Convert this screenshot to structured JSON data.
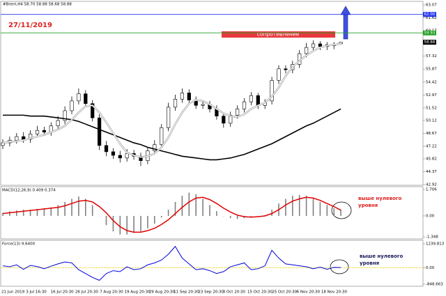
{
  "chart_data": [
    {
      "type": "candlestick",
      "title": "#Brent,H4 58.70 58.88 58.68 58.88",
      "annotation": "27/11/2019",
      "zone_label": "сопротивление",
      "open": [
        47.3,
        47.6,
        47.9,
        48.3,
        48.0,
        48.6,
        49.0,
        48.8,
        49.5,
        50.1,
        51.2,
        52.3,
        53.1,
        52.0,
        50.4,
        47.3,
        46.6,
        46.2,
        45.9,
        46.4,
        46.1,
        45.6,
        46.7,
        47.4,
        49.3,
        51.6,
        52.5,
        53.2,
        52.4,
        51.8,
        51.9,
        51.4,
        50.6,
        49.8,
        50.7,
        51.4,
        52.2,
        52.9,
        51.8,
        52.3,
        54.6,
        55.9,
        55.8,
        56.4,
        57.6,
        58.3,
        58.7,
        58.4,
        58.6,
        58.7
      ],
      "high": [
        48.0,
        48.3,
        48.7,
        48.8,
        49.0,
        49.5,
        49.4,
        49.9,
        50.6,
        51.7,
        52.8,
        53.7,
        53.5,
        52.4,
        50.8,
        47.8,
        47.0,
        46.7,
        46.9,
        46.8,
        46.5,
        47.1,
        47.9,
        49.7,
        52.1,
        53.0,
        53.7,
        53.6,
        52.8,
        52.3,
        52.3,
        51.8,
        51.0,
        51.1,
        51.8,
        52.6,
        53.3,
        53.2,
        52.5,
        55.0,
        56.3,
        56.3,
        56.8,
        58.0,
        58.8,
        59.1,
        59.0,
        58.9,
        58.9,
        58.88
      ],
      "low": [
        46.9,
        47.2,
        47.5,
        47.6,
        47.6,
        48.2,
        48.4,
        48.4,
        49.1,
        49.7,
        50.8,
        51.9,
        51.6,
        50.0,
        46.8,
        46.1,
        45.8,
        45.4,
        45.5,
        45.7,
        45.0,
        45.2,
        46.3,
        47.0,
        48.9,
        51.2,
        52.1,
        52.0,
        51.4,
        51.4,
        51.0,
        50.2,
        49.3,
        49.4,
        50.3,
        51.0,
        51.8,
        51.4,
        51.4,
        51.9,
        54.2,
        55.4,
        55.4,
        56.0,
        57.2,
        57.9,
        58.0,
        58.0,
        58.1,
        58.68
      ],
      "close": [
        47.6,
        47.9,
        48.3,
        48.0,
        48.6,
        49.0,
        48.8,
        49.5,
        50.1,
        51.2,
        52.3,
        53.1,
        52.0,
        50.4,
        47.3,
        46.6,
        46.2,
        45.9,
        46.4,
        46.1,
        45.6,
        46.7,
        47.4,
        49.3,
        51.6,
        52.5,
        53.2,
        52.4,
        51.8,
        51.9,
        51.4,
        50.6,
        49.8,
        50.7,
        51.4,
        52.2,
        52.9,
        51.8,
        52.1,
        54.6,
        55.9,
        55.8,
        56.4,
        57.6,
        58.3,
        58.7,
        58.4,
        58.6,
        58.5,
        58.88
      ],
      "lines": [
        {
          "color": "#000000",
          "values": [
            50.7,
            50.7,
            50.7,
            50.7,
            50.6,
            50.6,
            50.6,
            50.5,
            50.4,
            50.3,
            50.2,
            50.0,
            49.7,
            49.4,
            49.1,
            48.8,
            48.5,
            48.2,
            47.9,
            47.6,
            47.4,
            47.1,
            46.9,
            46.7,
            46.5,
            46.3,
            46.1,
            46.0,
            45.9,
            45.8,
            45.7,
            45.7,
            45.8,
            45.9,
            46.1,
            46.3,
            46.6,
            46.9,
            47.2,
            47.5,
            47.9,
            48.3,
            48.7,
            49.1,
            49.5,
            49.8,
            50.2,
            50.6,
            51.0,
            51.4
          ]
        },
        {
          "color": "#ffffff",
          "values": [
            47.6,
            47.7,
            47.8,
            47.9,
            48.1,
            48.3,
            48.5,
            48.8,
            49.1,
            49.5,
            50.2,
            51.0,
            51.7,
            51.8,
            51.0,
            49.9,
            48.7,
            47.5,
            46.5,
            46.2,
            46.0,
            46.1,
            46.4,
            47.1,
            48.2,
            49.7,
            51.0,
            52.0,
            52.4,
            52.3,
            51.9,
            51.4,
            50.9,
            50.6,
            50.5,
            50.8,
            51.4,
            51.8,
            52.1,
            52.8,
            53.8,
            55.1,
            56.1,
            56.8,
            57.4,
            57.9,
            58.3,
            58.5,
            58.6,
            58.7
          ]
        }
      ],
      "levels": [
        {
          "value": 62,
          "label": "62.00",
          "color": "#2233ee",
          "line": true
        },
        {
          "value": 59.93,
          "label": "59.93",
          "color": "#22a022",
          "line": true
        },
        {
          "value": 58.88,
          "label": "58.88",
          "color": "#000000",
          "line": false
        }
      ],
      "ylim": [
        42.92,
        63.07
      ],
      "yticks": [
        63.07,
        61.62,
        60.17,
        57.32,
        55.87,
        54.42,
        52.97,
        51.52,
        50.12,
        48.67,
        47.22,
        45.82,
        44.37,
        42.92
      ]
    },
    {
      "type": "macd",
      "title": "MACD(12,26,9) 0.409 0.374",
      "values": [
        0.2,
        0.3,
        0.35,
        0.4,
        0.4,
        0.45,
        0.5,
        0.55,
        0.7,
        0.9,
        1.1,
        1.25,
        1.1,
        0.7,
        0.0,
        -0.6,
        -1.0,
        -1.2,
        -1.2,
        -1.1,
        -1.0,
        -0.8,
        -0.5,
        -0.1,
        0.4,
        0.9,
        1.3,
        1.5,
        1.4,
        1.1,
        0.7,
        0.3,
        0.0,
        -0.15,
        -0.2,
        -0.15,
        -0.05,
        0.0,
        0.05,
        0.4,
        0.8,
        1.1,
        1.3,
        1.35,
        1.3,
        1.1,
        0.9,
        0.7,
        0.5,
        0.409
      ],
      "color": "#808080",
      "signal": {
        "color": "#e00000",
        "values": [
          0.15,
          0.2,
          0.25,
          0.3,
          0.35,
          0.4,
          0.45,
          0.5,
          0.55,
          0.65,
          0.8,
          0.95,
          1.0,
          0.9,
          0.6,
          0.2,
          -0.3,
          -0.7,
          -0.95,
          -1.05,
          -1.05,
          -0.95,
          -0.8,
          -0.55,
          -0.25,
          0.15,
          0.55,
          0.9,
          1.15,
          1.2,
          1.05,
          0.8,
          0.5,
          0.25,
          0.05,
          -0.05,
          -0.08,
          -0.05,
          0.0,
          0.15,
          0.4,
          0.7,
          0.95,
          1.1,
          1.2,
          1.15,
          1.0,
          0.8,
          0.6,
          0.374
        ]
      },
      "annotation": [
        "выше нулевого",
        "уровня"
      ],
      "ylim": [
        -1.348,
        1.706
      ],
      "yticks": [
        1.706,
        {
          "value": 0,
          "label": "0.00"
        },
        -1.348
      ]
    },
    {
      "type": "line",
      "title": "Force(13) 9.6400",
      "series": [
        {
          "color": "#0000dd",
          "values": [
            100,
            50,
            150,
            -80,
            120,
            60,
            -50,
            80,
            200,
            300,
            250,
            -100,
            -300,
            -500,
            -650,
            -300,
            -150,
            -200,
            50,
            -100,
            -50,
            150,
            250,
            400,
            700,
            1100,
            500,
            200,
            -100,
            -50,
            -150,
            -300,
            -200,
            50,
            150,
            250,
            -100,
            -50,
            100,
            900,
            500,
            200,
            150,
            100,
            50,
            -50,
            30,
            -80,
            20,
            9.64
          ]
        }
      ],
      "zero_line_color": "#f0e060",
      "annotation": [
        "выше нулевого",
        "уровня"
      ],
      "ylim": [
        -848.663,
        1239.813
      ],
      "yticks": [
        1239.813,
        {
          "value": 0,
          "label": "0.00"
        },
        -848.663
      ],
      "xtick_labels": [
        "21 Jun 2019",
        "3 Jul 16:30",
        "16 Jul 20:30",
        "26 Jul 20:30",
        "7 Aug 20:30",
        "19 Aug 20:30",
        "29 Aug 20:30",
        "11 Sep 20:30",
        "23 Sep 20:30",
        "3 Oct 20:30",
        "15 Oct 20:30",
        "25 Oct 20:30",
        "6 Nov 20:30",
        "18 Nov 20:30"
      ]
    }
  ]
}
